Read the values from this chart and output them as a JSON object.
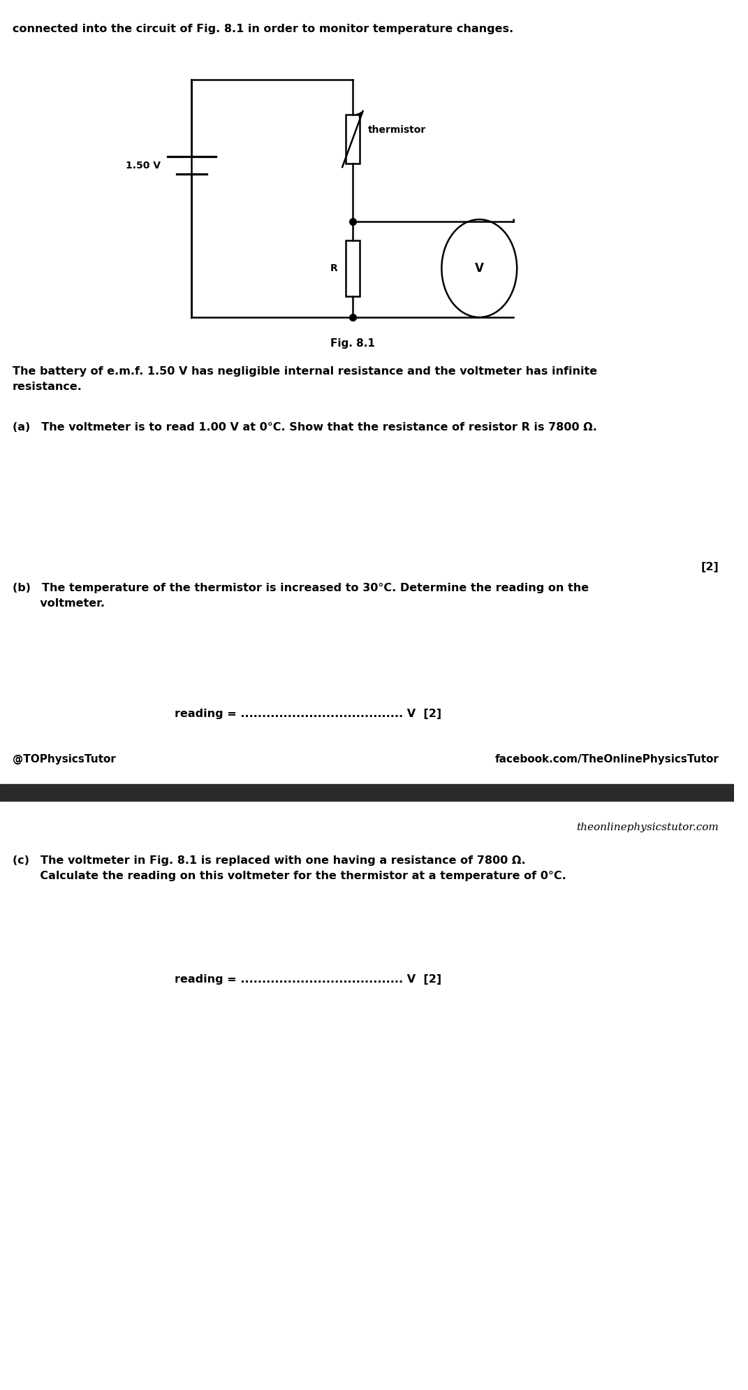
{
  "bg_color": "#ffffff",
  "text_color": "#000000",
  "top_text": "connected into the circuit of Fig. 8.1 in order to monitor temperature changes.",
  "fig_label": "Fig. 8.1",
  "battery_label": "1.50 V",
  "thermistor_label": "thermistor",
  "R_label": "R",
  "V_label": "V",
  "battery_info": "The battery of e.m.f. 1.50 V has negligible internal resistance and the voltmeter has infinite\nresistance.",
  "part_a_text": "(a) The voltmeter is to read 1.00 V at 0°C. Show that the resistance of resistor R is 7800 Ω.",
  "part_a_marks": "[2]",
  "part_b_text": "(b) The temperature of the thermistor is increased to 30°C. Determine the reading on the\n       voltmeter.",
  "part_b_reading": "reading = ...................................... V  [2]",
  "social_left": "@TOPhysicsTutor",
  "social_right": "facebook.com/TheOnlinePhysicsTutor",
  "website": "theonlinephysicstutor.com",
  "part_c_text": "(c) The voltmeter in Fig. 8.1 is replaced with one having a resistance of 7800 Ω.\n       Calculate the reading on this voltmeter for the thermistor at a temperature of 0°C.",
  "part_c_reading": "reading = ...................................... V  [2]",
  "line_color": "#000000",
  "separator_color": "#1a1a1a"
}
